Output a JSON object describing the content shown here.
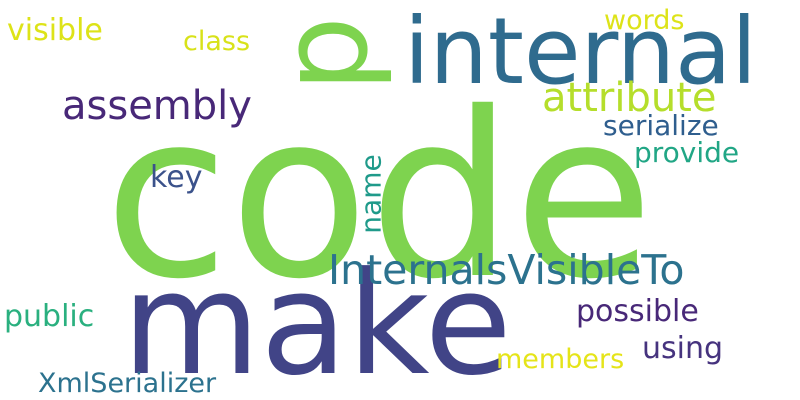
{
  "word_cloud": {
    "words": [
      {
        "text": "code",
        "color": "#7ed34f"
      },
      {
        "text": "p",
        "color": "#7ed34f"
      },
      {
        "text": "make",
        "color": "#414487"
      },
      {
        "text": "internal",
        "color": "#2f6b8e"
      },
      {
        "text": "InternalsVisibleTo",
        "color": "#2c728e"
      },
      {
        "text": "attribute",
        "color": "#b5de2b"
      },
      {
        "text": "assembly",
        "color": "#482878"
      },
      {
        "text": "serialize",
        "color": "#2f5e8e"
      },
      {
        "text": "provide",
        "color": "#21a685"
      },
      {
        "text": "key",
        "color": "#3b528b"
      },
      {
        "text": "name",
        "color": "#1f9a8a"
      },
      {
        "text": "words",
        "color": "#dde318"
      },
      {
        "text": "class",
        "color": "#d8e219"
      },
      {
        "text": "visible",
        "color": "#dde318"
      },
      {
        "text": "public",
        "color": "#2ab07f"
      },
      {
        "text": "possible",
        "color": "#482878"
      },
      {
        "text": "using",
        "color": "#46337e"
      },
      {
        "text": "members",
        "color": "#e5e419"
      },
      {
        "text": "XmlSerializer",
        "color": "#2c728e"
      }
    ]
  }
}
